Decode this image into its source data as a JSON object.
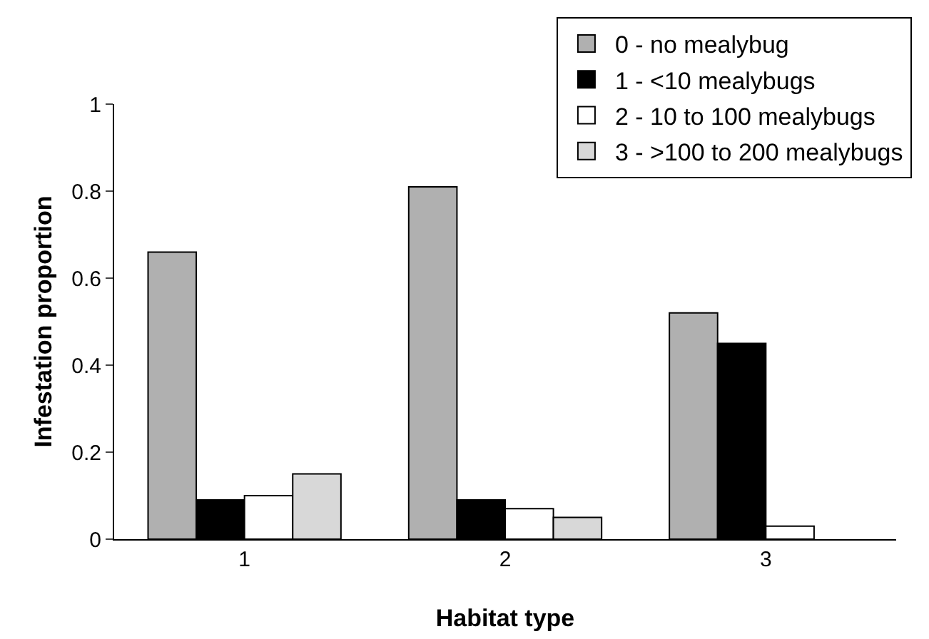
{
  "chart_data": {
    "type": "bar",
    "xlabel": "Habitat type",
    "ylabel": "Infestation proportion",
    "categories": [
      "1",
      "2",
      "3"
    ],
    "series": [
      {
        "name": "0 - no mealybug",
        "color": "#b0b0b0",
        "values": [
          0.66,
          0.81,
          0.52
        ]
      },
      {
        "name": "1 - <10 mealybugs",
        "color": "#000000",
        "values": [
          0.09,
          0.09,
          0.45
        ]
      },
      {
        "name": "2 - 10 to 100 mealybugs",
        "color": "#ffffff",
        "values": [
          0.1,
          0.07,
          0.03
        ]
      },
      {
        "name": "3 - >100 to 200 mealybugs",
        "color": "#d8d8d8",
        "values": [
          0.15,
          0.05,
          null
        ]
      }
    ],
    "ylim": [
      0,
      1
    ],
    "yticks": [
      0,
      0.2,
      0.4,
      0.6,
      0.8,
      1
    ],
    "grid": false,
    "legend": "top right"
  }
}
